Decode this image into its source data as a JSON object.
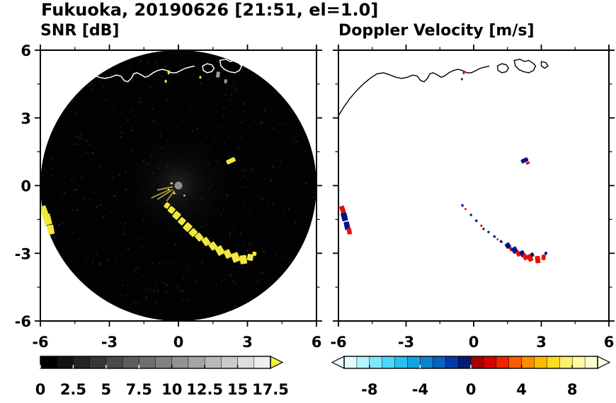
{
  "title": "Fukuoka, 20190626 [21:51, el=1.0]",
  "panels": {
    "snr": {
      "title": "SNR [dB]"
    },
    "doppler": {
      "title": "Doppler Velocity [m/s]"
    }
  },
  "chart_data": {
    "type": "heatmap",
    "subtype": "radar-ppi-pair",
    "station": "Fukuoka",
    "date": "20190626",
    "time": "21:51",
    "elevation_deg": "1.0",
    "axes": {
      "xlim": [
        -6,
        6
      ],
      "ylim": [
        -6,
        6
      ],
      "xticks": [
        -6,
        -3,
        0,
        3,
        6
      ],
      "yticks": [
        6,
        3,
        0,
        -3,
        -6
      ],
      "xtick_labels": [
        "-6",
        "-3",
        "0",
        "3",
        "6"
      ],
      "ytick_labels": [
        "6",
        "3",
        "0",
        "-3",
        "-6"
      ],
      "minor_ticks": [
        -4.5,
        -1.5,
        1.5,
        4.5
      ]
    },
    "coastline": {
      "main": [
        [
          -6.0,
          3.1
        ],
        [
          -5.75,
          3.5
        ],
        [
          -5.5,
          3.85
        ],
        [
          -5.2,
          4.2
        ],
        [
          -4.9,
          4.5
        ],
        [
          -4.6,
          4.75
        ],
        [
          -4.3,
          4.95
        ],
        [
          -4.0,
          5.0
        ],
        [
          -3.7,
          4.9
        ],
        [
          -3.45,
          4.8
        ],
        [
          -3.2,
          4.75
        ],
        [
          -2.95,
          4.8
        ],
        [
          -2.7,
          4.9
        ],
        [
          -2.5,
          4.85
        ],
        [
          -2.35,
          4.65
        ],
        [
          -2.2,
          4.6
        ],
        [
          -2.05,
          4.75
        ],
        [
          -1.95,
          4.95
        ],
        [
          -1.8,
          5.0
        ],
        [
          -1.6,
          4.9
        ],
        [
          -1.45,
          4.8
        ],
        [
          -1.3,
          4.85
        ],
        [
          -1.1,
          5.0
        ],
        [
          -0.9,
          5.1
        ],
        [
          -0.7,
          5.15
        ],
        [
          -0.5,
          5.1
        ],
        [
          -0.3,
          5.0
        ],
        [
          -0.1,
          5.0
        ],
        [
          0.1,
          5.1
        ],
        [
          0.3,
          5.2
        ],
        [
          0.5,
          5.25
        ],
        [
          0.7,
          5.3
        ]
      ],
      "islands": [
        [
          [
            1.05,
            5.3
          ],
          [
            1.25,
            5.4
          ],
          [
            1.45,
            5.35
          ],
          [
            1.55,
            5.2
          ],
          [
            1.45,
            5.05
          ],
          [
            1.25,
            5.0
          ],
          [
            1.08,
            5.1
          ]
        ],
        [
          [
            1.8,
            5.55
          ],
          [
            2.05,
            5.6
          ],
          [
            2.25,
            5.5
          ],
          [
            2.45,
            5.55
          ],
          [
            2.6,
            5.45
          ],
          [
            2.75,
            5.3
          ],
          [
            2.65,
            5.1
          ],
          [
            2.45,
            5.0
          ],
          [
            2.2,
            5.05
          ],
          [
            2.0,
            5.15
          ],
          [
            1.85,
            5.3
          ]
        ],
        [
          [
            3.0,
            5.5
          ],
          [
            3.2,
            5.45
          ],
          [
            3.3,
            5.3
          ],
          [
            3.15,
            5.2
          ],
          [
            3.0,
            5.3
          ]
        ]
      ]
    },
    "snr": {
      "background": "#020202",
      "echo_color": "#f0e83c",
      "gray_color": "#9a9a9a",
      "echoes": [
        [
          -5.85,
          -1.1,
          0.28,
          0.4,
          -20
        ],
        [
          -5.7,
          -1.5,
          0.33,
          0.48,
          -15
        ],
        [
          -5.55,
          -1.95,
          0.28,
          0.42,
          -10
        ],
        [
          -0.5,
          -0.88,
          0.2,
          0.26,
          35
        ],
        [
          -0.3,
          -1.08,
          0.26,
          0.28,
          38
        ],
        [
          -0.08,
          -1.32,
          0.28,
          0.32,
          40
        ],
        [
          0.15,
          -1.58,
          0.26,
          0.3,
          40
        ],
        [
          0.4,
          -1.84,
          0.3,
          0.34,
          42
        ],
        [
          0.64,
          -2.08,
          0.28,
          0.32,
          45
        ],
        [
          0.9,
          -2.28,
          0.32,
          0.28,
          50
        ],
        [
          1.2,
          -2.48,
          0.34,
          0.28,
          55
        ],
        [
          1.5,
          -2.68,
          0.32,
          0.3,
          55
        ],
        [
          1.8,
          -2.88,
          0.38,
          0.32,
          60
        ],
        [
          2.14,
          -3.03,
          0.36,
          0.28,
          65
        ],
        [
          2.48,
          -3.18,
          0.4,
          0.32,
          70
        ],
        [
          2.82,
          -3.28,
          0.38,
          0.3,
          82
        ],
        [
          3.12,
          -3.18,
          0.28,
          0.26,
          100
        ],
        [
          3.3,
          -3.02,
          0.18,
          0.18,
          100
        ],
        [
          2.28,
          1.1,
          0.4,
          0.2,
          -25
        ],
        [
          -0.42,
          5.02,
          0.1,
          0.18,
          0
        ],
        [
          -0.55,
          4.62,
          0.09,
          0.14,
          0
        ],
        [
          0.95,
          4.8,
          0.09,
          0.12,
          0
        ],
        [
          -0.3,
          0.1,
          0.1,
          0.09,
          0
        ],
        [
          -0.42,
          -0.18,
          0.09,
          0.08,
          0
        ],
        [
          -0.18,
          -0.34,
          0.1,
          0.08,
          0
        ],
        [
          0.26,
          -0.44,
          0.08,
          0.08,
          0
        ]
      ],
      "gray_echoes": [
        [
          1.72,
          4.92,
          0.16,
          0.26,
          10
        ],
        [
          2.05,
          4.62,
          0.12,
          0.18,
          0
        ]
      ],
      "center_clutter": {
        "dot_color": "#8f8f8f",
        "dot_radius": 0.17,
        "spokes": [
          [
            192,
            0.25,
            0.95
          ],
          [
            214,
            0.3,
            1.1
          ],
          [
            233,
            0.28,
            0.85
          ],
          [
            205,
            0.5,
            1.3
          ]
        ]
      }
    },
    "doppler": {
      "neg_color": "#001484",
      "pos_color": "#e81000",
      "echoes": [
        [
          -5.82,
          -1.05,
          0.22,
          0.3,
          -20,
          "pos"
        ],
        [
          -5.74,
          -1.38,
          0.26,
          0.38,
          -15,
          "neg"
        ],
        [
          -5.62,
          -1.78,
          0.24,
          0.36,
          -12,
          "neg"
        ],
        [
          -5.52,
          -2.02,
          0.2,
          0.28,
          -10,
          "pos"
        ],
        [
          -0.5,
          -0.88,
          0.1,
          0.12,
          0,
          "neg"
        ],
        [
          -0.36,
          -1.04,
          0.09,
          0.1,
          0,
          "pos"
        ],
        [
          -0.12,
          -1.3,
          0.1,
          0.11,
          0,
          "neg"
        ],
        [
          0.12,
          -1.56,
          0.11,
          0.11,
          0,
          "neg"
        ],
        [
          0.34,
          -1.78,
          0.09,
          0.11,
          0,
          "pos"
        ],
        [
          0.44,
          -1.92,
          0.1,
          0.1,
          0,
          "neg"
        ],
        [
          0.66,
          -2.06,
          0.11,
          0.1,
          0,
          "neg"
        ],
        [
          0.92,
          -2.26,
          0.11,
          0.11,
          0,
          "neg"
        ],
        [
          1.06,
          -2.38,
          0.09,
          0.09,
          0,
          "pos"
        ],
        [
          1.22,
          -2.48,
          0.13,
          0.11,
          55,
          "neg"
        ],
        [
          1.52,
          -2.66,
          0.24,
          0.22,
          55,
          "neg"
        ],
        [
          1.66,
          -2.82,
          0.18,
          0.14,
          55,
          "pos"
        ],
        [
          1.82,
          -2.86,
          0.28,
          0.24,
          60,
          "neg"
        ],
        [
          1.98,
          -3.02,
          0.24,
          0.18,
          62,
          "pos"
        ],
        [
          2.16,
          -3.02,
          0.28,
          0.2,
          65,
          "neg"
        ],
        [
          2.28,
          -3.16,
          0.28,
          0.18,
          68,
          "pos"
        ],
        [
          2.5,
          -3.2,
          0.32,
          0.22,
          70,
          "pos"
        ],
        [
          2.6,
          -3.06,
          0.18,
          0.14,
          70,
          "neg"
        ],
        [
          2.84,
          -3.28,
          0.32,
          0.22,
          82,
          "pos"
        ],
        [
          3.1,
          -3.18,
          0.24,
          0.18,
          96,
          "pos"
        ],
        [
          3.2,
          -3.0,
          0.14,
          0.12,
          100,
          "neg"
        ],
        [
          2.26,
          1.12,
          0.32,
          0.18,
          -25,
          "neg"
        ],
        [
          2.4,
          1.0,
          0.18,
          0.11,
          -25,
          "pos"
        ],
        [
          -0.44,
          5.0,
          0.09,
          0.15,
          0,
          "pos"
        ],
        [
          -0.52,
          4.72,
          0.08,
          0.11,
          0,
          "neg"
        ]
      ]
    },
    "colorbars": {
      "snr": {
        "min": 0,
        "max": 17.5,
        "cells": 14,
        "start_color": "#000000",
        "end_color": "#efefef",
        "over_color": "#f5ef3c",
        "tick_values": [
          0,
          2.5,
          5,
          7.5,
          10,
          12.5,
          15,
          17.5
        ],
        "tick_labels": [
          "0",
          "2.5",
          "5",
          "7.5",
          "10",
          "12.5",
          "15",
          "17.5"
        ]
      },
      "doppler": {
        "min": -10,
        "max": 10,
        "cell_colors": [
          "#e2feff",
          "#b4f5ff",
          "#7fe8ff",
          "#4cd7fb",
          "#24c0ef",
          "#12a3e0",
          "#0b84d0",
          "#0762c0",
          "#043ba8",
          "#021c74",
          "#a50000",
          "#d60000",
          "#f32500",
          "#ff5a00",
          "#ff8c00",
          "#ffbb00",
          "#ffdd1c",
          "#fff065",
          "#fffa9e",
          "#fffdd0"
        ],
        "under_color": "#f0ffff",
        "over_color": "#fffef2",
        "tick_values": [
          -8,
          -4,
          0,
          4,
          8
        ],
        "tick_labels": [
          "-8",
          "-4",
          "0",
          "4",
          "8"
        ]
      }
    }
  }
}
